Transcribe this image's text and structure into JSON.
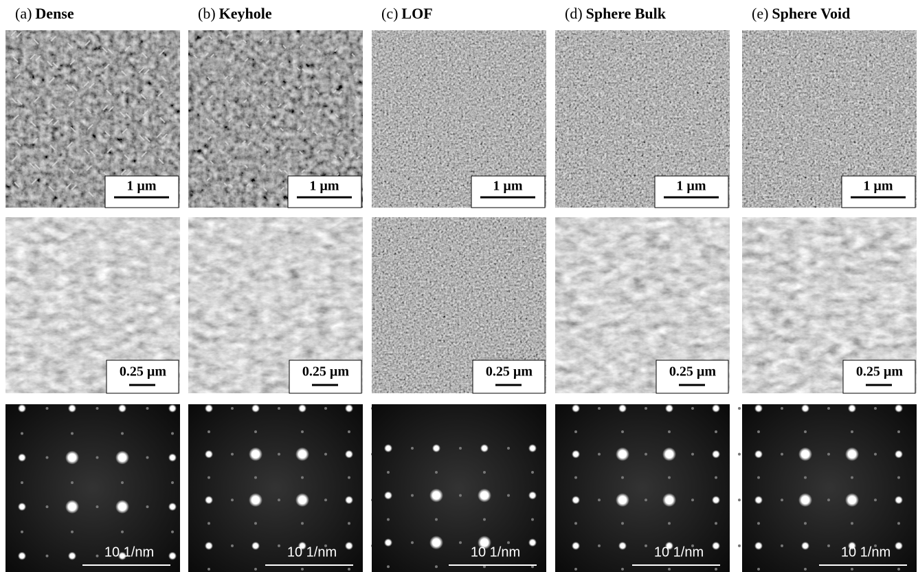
{
  "panels": [
    {
      "letter": "(a)",
      "name": "Dense",
      "scale_bars": [
        "1 µm",
        "0.25 µm",
        "10 1/nm"
      ]
    },
    {
      "letter": "(b)",
      "name": "Keyhole",
      "scale_bars": [
        "1 µm",
        "0.25 µm",
        "10 1/nm"
      ]
    },
    {
      "letter": "(c)",
      "name": "LOF",
      "scale_bars": [
        "1 µm",
        "0.25 µm",
        "10 1/nm"
      ]
    },
    {
      "letter": "(d)",
      "name": "Sphere Bulk",
      "scale_bars": [
        "1 µm",
        "0.25 µm",
        "10 1/nm"
      ]
    },
    {
      "letter": "(e)",
      "name": "Sphere Void",
      "scale_bars": [
        "1 µm",
        "0.25 µm",
        "10 1/nm"
      ]
    }
  ]
}
